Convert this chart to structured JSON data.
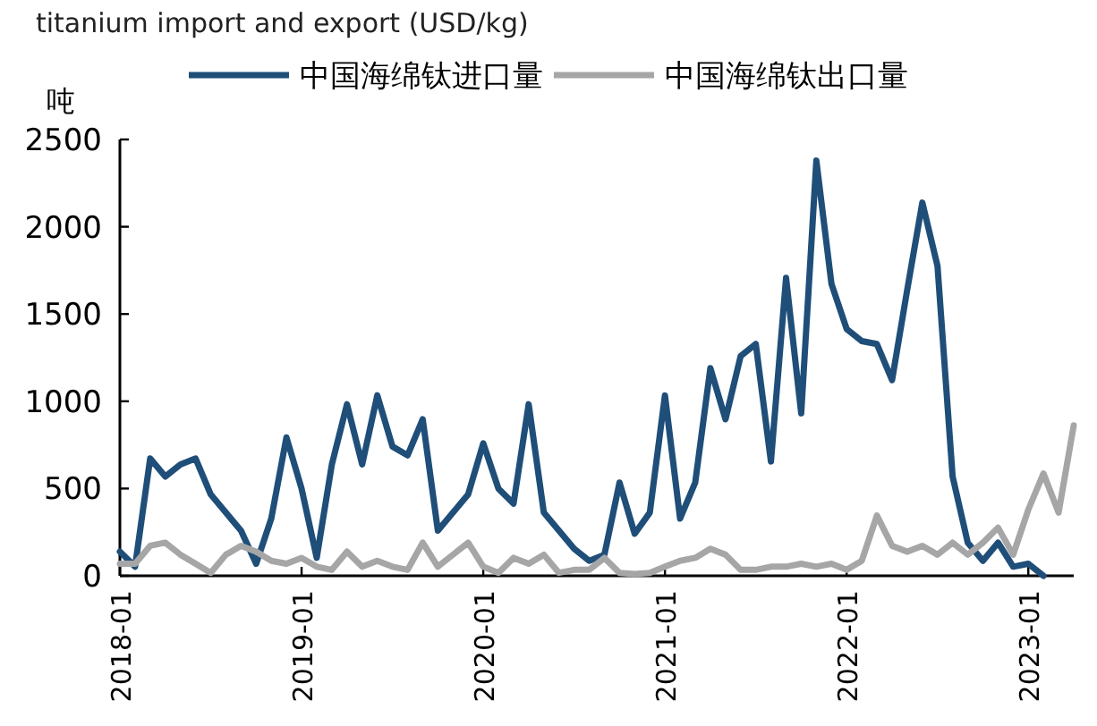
{
  "chart_data": {
    "type": "line",
    "annotations": [
      "titanium import and export (USD/kg)"
    ],
    "ylabel": "吨",
    "x": [
      "2018-01",
      "2018-02",
      "2018-03",
      "2018-04",
      "2018-05",
      "2018-06",
      "2018-07",
      "2018-08",
      "2018-09",
      "2018-10",
      "2018-11",
      "2018-12",
      "2019-01",
      "2019-02",
      "2019-03",
      "2019-04",
      "2019-05",
      "2019-06",
      "2019-07",
      "2019-08",
      "2019-09",
      "2019-10",
      "2019-11",
      "2019-12",
      "2020-01",
      "2020-02",
      "2020-03",
      "2020-04",
      "2020-05",
      "2020-06",
      "2020-07",
      "2020-08",
      "2020-09",
      "2020-10",
      "2020-11",
      "2020-12",
      "2021-01",
      "2021-02",
      "2021-03",
      "2021-04",
      "2021-05",
      "2021-06",
      "2021-07",
      "2021-08",
      "2021-09",
      "2021-10",
      "2021-11",
      "2021-12",
      "2022-01",
      "2022-02",
      "2022-03",
      "2022-04",
      "2022-05",
      "2022-06",
      "2022-07",
      "2022-08",
      "2022-09",
      "2022-10",
      "2022-11",
      "2022-12",
      "2023-01",
      "2023-02",
      "2023-03",
      "2023-04"
    ],
    "series": [
      {
        "name": "中国海绵钛进口量",
        "color": "#1f4e79",
        "values": [
          138,
          52,
          672,
          569,
          638,
          672,
          466,
          362,
          259,
          69,
          328,
          793,
          500,
          103,
          638,
          983,
          638,
          1034,
          741,
          690,
          897,
          259,
          362,
          466,
          759,
          500,
          414,
          983,
          362,
          259,
          155,
          86,
          120,
          534,
          241,
          362,
          1034,
          328,
          534,
          1190,
          897,
          1259,
          1328,
          655,
          1707,
          931,
          2379,
          1672,
          1414,
          1345,
          1328,
          1121,
          1638,
          2138,
          1776,
          569,
          190,
          86,
          190,
          52,
          69,
          0,
          null,
          null
        ]
      },
      {
        "name": "中国海绵钛出口量",
        "color": "#a6a6a6",
        "values": [
          69,
          69,
          172,
          190,
          121,
          69,
          17,
          121,
          172,
          138,
          86,
          69,
          103,
          52,
          34,
          138,
          52,
          86,
          52,
          34,
          190,
          52,
          121,
          190,
          52,
          17,
          103,
          69,
          121,
          17,
          34,
          34,
          103,
          17,
          10,
          17,
          52,
          86,
          103,
          155,
          121,
          34,
          34,
          52,
          52,
          69,
          52,
          69,
          34,
          86,
          345,
          172,
          138,
          172,
          121,
          190,
          121,
          190,
          276,
          121,
          379,
          586,
          362,
          862
        ]
      }
    ],
    "xlim": [
      "2018-01",
      "2023-04"
    ],
    "xticks": [
      "2018-01",
      "2019-01",
      "2020-01",
      "2021-01",
      "2022-01",
      "2023-01"
    ],
    "ylim": [
      0,
      2500
    ],
    "yticks": [
      0,
      500,
      1000,
      1500,
      2000,
      2500
    ],
    "grid": false,
    "legend": "top",
    "line_style": "solid",
    "marker": "none"
  }
}
